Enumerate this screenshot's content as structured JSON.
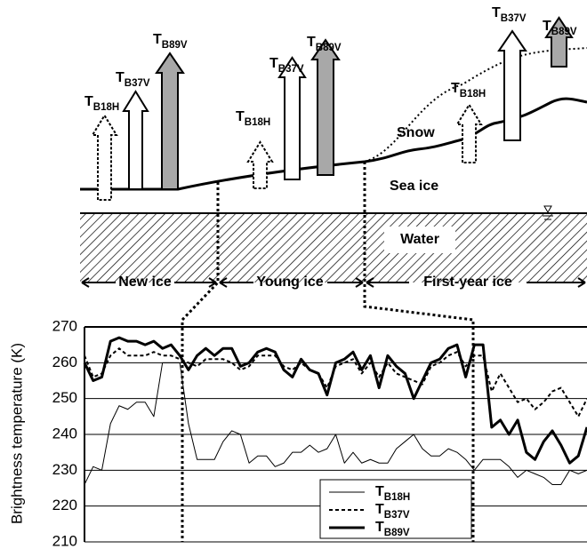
{
  "chart_data": {
    "type": "line",
    "ylabel": "Brightness temperature (K)",
    "ylim": [
      210,
      270
    ],
    "yticks": [
      210,
      220,
      230,
      240,
      250,
      260,
      270
    ],
    "grid": true,
    "legend": "lower-right",
    "series": [
      {
        "name": "TB18H",
        "color": "#000000",
        "style": "thin",
        "values": [
          226,
          231,
          230,
          243,
          248,
          247,
          249,
          249,
          245,
          260,
          260,
          260,
          243,
          233,
          233,
          233,
          238,
          241,
          240,
          232,
          234,
          234,
          231,
          232,
          235,
          235,
          237,
          235,
          236,
          240,
          232,
          235,
          232,
          233,
          232,
          232,
          236,
          238,
          240,
          236,
          234,
          234,
          236,
          235,
          233,
          230,
          233,
          233,
          233,
          231,
          228,
          230,
          229,
          228,
          226,
          226,
          230,
          229,
          230
        ]
      },
      {
        "name": "TB37V",
        "color": "#000000",
        "style": "dashed",
        "values": [
          262,
          256,
          257,
          262,
          264,
          262,
          262,
          262,
          263,
          262,
          262,
          261,
          260,
          259,
          261,
          261,
          261,
          260,
          258,
          259,
          262,
          262,
          262,
          259,
          258,
          260,
          258,
          257,
          253,
          259,
          260,
          261,
          257,
          260,
          256,
          260,
          257,
          256,
          255,
          254,
          259,
          260,
          262,
          263,
          259,
          262,
          262,
          252,
          257,
          253,
          249,
          250,
          247,
          249,
          252,
          253,
          249,
          245,
          250
        ]
      },
      {
        "name": "TB89V",
        "color": "#000000",
        "style": "thick",
        "values": [
          260,
          255,
          256,
          266,
          267,
          266,
          266,
          265,
          266,
          264,
          265,
          262,
          258,
          262,
          264,
          262,
          264,
          264,
          259,
          260,
          263,
          264,
          263,
          258,
          256,
          261,
          258,
          257,
          251,
          260,
          261,
          263,
          258,
          262,
          253,
          262,
          259,
          257,
          250,
          255,
          260,
          261,
          264,
          265,
          256,
          265,
          265,
          242,
          244,
          240,
          244,
          235,
          233,
          238,
          241,
          237,
          232,
          234,
          242
        ]
      }
    ]
  },
  "diagram": {
    "arrows": [
      {
        "label": "TB18H"
      },
      {
        "label": "TB37V"
      },
      {
        "label": "TB89V"
      },
      {
        "label": "TB18H"
      },
      {
        "label": "TB37V"
      },
      {
        "label": "TB89V"
      },
      {
        "label": "TB18H"
      },
      {
        "label": "TB37V"
      },
      {
        "label": "TB89V"
      }
    ],
    "snow": "Snow",
    "sea_ice": "Sea ice",
    "water": "Water",
    "zones": [
      "New ice",
      "Young ice",
      "First-year ice"
    ]
  }
}
